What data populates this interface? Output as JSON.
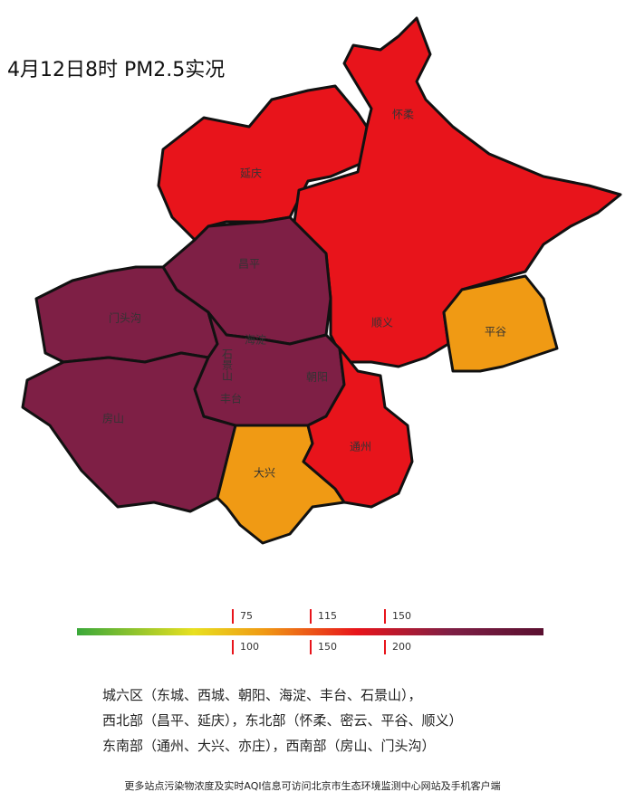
{
  "title": "4月12日8时 PM2.5实况",
  "districts": [
    {
      "label": "怀柔"
    },
    {
      "label": "延庆"
    },
    {
      "label": "昌平"
    },
    {
      "label": "门头沟"
    },
    {
      "label": "顺义"
    },
    {
      "label": "平谷"
    },
    {
      "label": "海淀"
    },
    {
      "label": "石景山"
    },
    {
      "label": "朝阳"
    },
    {
      "label": "丰台"
    },
    {
      "label": "房山"
    },
    {
      "label": "大兴"
    },
    {
      "label": "通州"
    }
  ],
  "legend": {
    "top": [
      75,
      115,
      150
    ],
    "bottom": [
      100,
      150,
      200
    ]
  },
  "notes": [
    "城六区（东城、西城、朝阳、海淀、丰台、石景山），",
    "西北部（昌平、延庆），东北部（怀柔、密云、平谷、顺义）",
    "东南部（通州、大兴、亦庄），西南部（房山、门头沟）"
  ],
  "footer": "更多站点污染物浓度及实时AQI信息可访问北京市生态环境监测中心网站及手机客户端"
}
